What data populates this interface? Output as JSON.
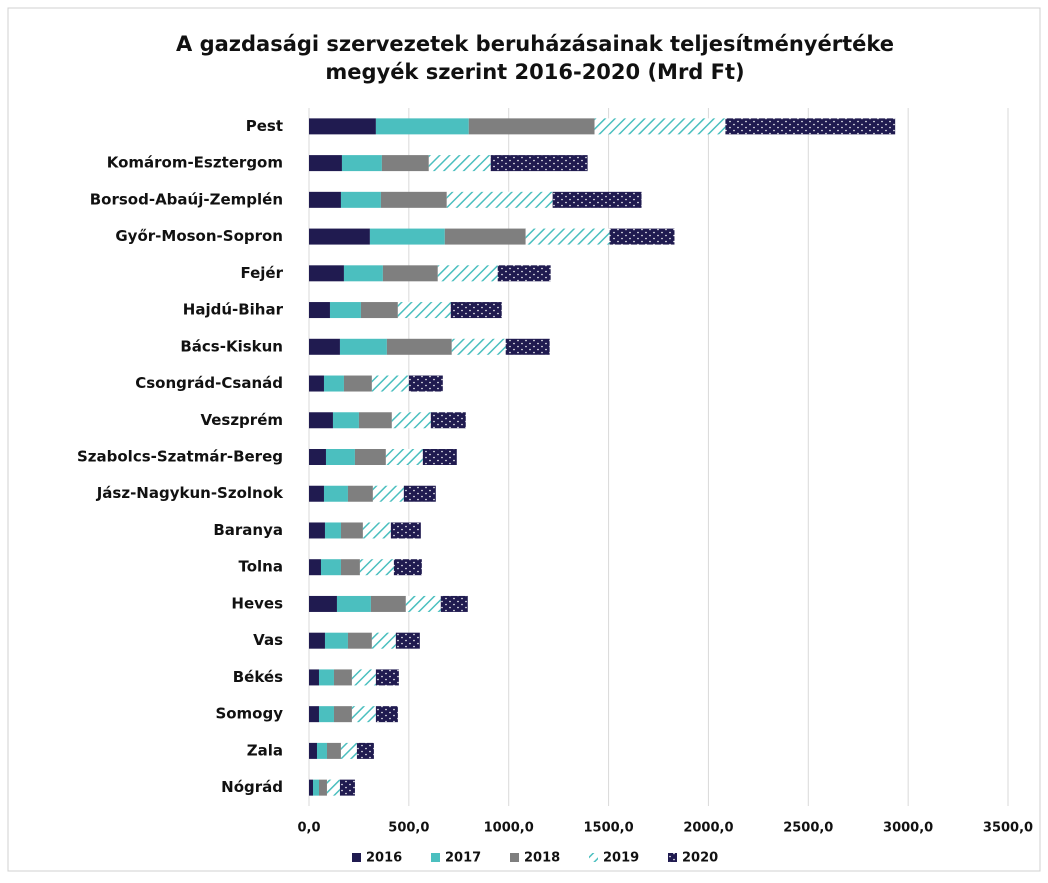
{
  "chart_data": {
    "type": "stacked-bar-horizontal",
    "title": [
      "A gazdasági szervezetek beruházásainak teljesítményértéke",
      "megyék szerint 2016-2020 (Mrd Ft)"
    ],
    "categories": [
      "Pest",
      "Komárom-Esztergom",
      "Borsod-Abaúj-Zemplén",
      "Győr-Moson-Sopron",
      "Fejér",
      "Hajdú-Bihar",
      "Bács-Kiskun",
      "Csongrád-Csanád",
      "Veszprém",
      "Szabolcs-Szatmár-Bereg",
      "Jász-Nagykun-Szolnok",
      "Baranya",
      "Tolna",
      "Heves",
      "Vas",
      "Békés",
      "Somogy",
      "Zala",
      "Nógrád"
    ],
    "series": [
      {
        "name": "2016",
        "color": "#201b50",
        "pattern": "solid",
        "values": [
          335,
          165,
          160,
          305,
          175,
          105,
          155,
          75,
          120,
          85,
          75,
          80,
          60,
          140,
          80,
          50,
          50,
          40,
          20
        ]
      },
      {
        "name": "2017",
        "color": "#4bbfbf",
        "pattern": "solid",
        "values": [
          465,
          200,
          200,
          375,
          195,
          155,
          235,
          100,
          130,
          145,
          120,
          80,
          100,
          170,
          115,
          75,
          75,
          50,
          30
        ]
      },
      {
        "name": "2018",
        "color": "#7f7f7f",
        "pattern": "solid",
        "values": [
          630,
          235,
          330,
          405,
          275,
          185,
          325,
          140,
          165,
          155,
          125,
          110,
          95,
          175,
          120,
          90,
          90,
          70,
          40
        ]
      },
      {
        "name": "2019",
        "color": "#4bbfbf",
        "pattern": "hatch",
        "values": [
          655,
          310,
          530,
          420,
          300,
          265,
          270,
          185,
          195,
          185,
          155,
          140,
          170,
          175,
          120,
          120,
          120,
          80,
          65
        ]
      },
      {
        "name": "2020",
        "color": "#201b50",
        "pattern": "dots",
        "values": [
          850,
          485,
          445,
          325,
          265,
          255,
          220,
          170,
          175,
          170,
          160,
          150,
          140,
          135,
          120,
          115,
          110,
          85,
          75
        ]
      }
    ],
    "xlim": [
      0,
      3500
    ],
    "xticks": [
      {
        "value": 0,
        "label": "0,0"
      },
      {
        "value": 500,
        "label": "500,0"
      },
      {
        "value": 1000,
        "label": "1000,0"
      },
      {
        "value": 1500,
        "label": "1500,0"
      },
      {
        "value": 2000,
        "label": "2000,0"
      },
      {
        "value": 2500,
        "label": "2500,0"
      },
      {
        "value": 3000,
        "label": "3000,0"
      },
      {
        "value": 3500,
        "label": "3500,0"
      }
    ],
    "grid": true,
    "legend": "bottom"
  }
}
